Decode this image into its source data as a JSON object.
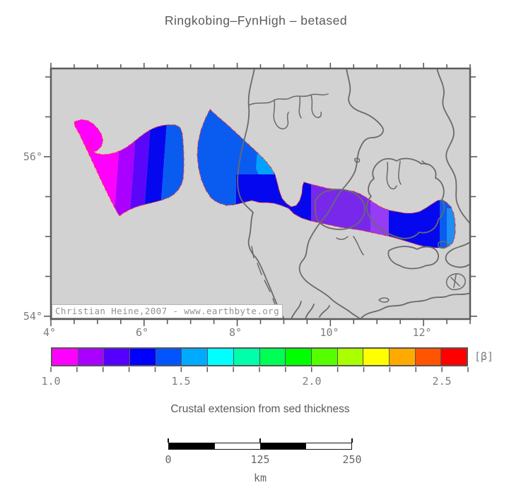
{
  "title": "Ringkobing–FynHigh – betased",
  "map": {
    "watermark": "Christian Heine,2007 - www.earthbyte.org",
    "x_axis_labels": [
      "4°",
      "6°",
      "8°",
      "10°",
      "12°"
    ],
    "y_axis_labels": [
      "56°",
      "54°"
    ],
    "background_color": "#d2d2d2",
    "coastline_color": "#6a6a6a",
    "region_outline_color": "#ff2a20",
    "region_beta_range": {
      "min": 1.0,
      "max": 1.6
    }
  },
  "colorbar": {
    "unit_label": "[β]",
    "tick_labels": [
      "1.0",
      "1.5",
      "2.0",
      "2.5"
    ],
    "value_range": [
      1.0,
      2.6
    ],
    "segment_step": 0.1,
    "segment_colors": [
      "#ff00ff",
      "#aa00ff",
      "#5500ff",
      "#0000ff",
      "#0055ff",
      "#00aaff",
      "#00ffff",
      "#00ffaa",
      "#00ff55",
      "#00ff00",
      "#55ff00",
      "#aaff00",
      "#ffff00",
      "#ffaa00",
      "#ff5500",
      "#ff0000"
    ]
  },
  "caption": "Crustal extension from sed thickness",
  "scale_bar": {
    "tick_labels": [
      "0",
      "125",
      "250"
    ],
    "unit": "km",
    "segment_fills": [
      "#000000",
      "#ffffff",
      "#000000",
      "#ffffff"
    ]
  }
}
